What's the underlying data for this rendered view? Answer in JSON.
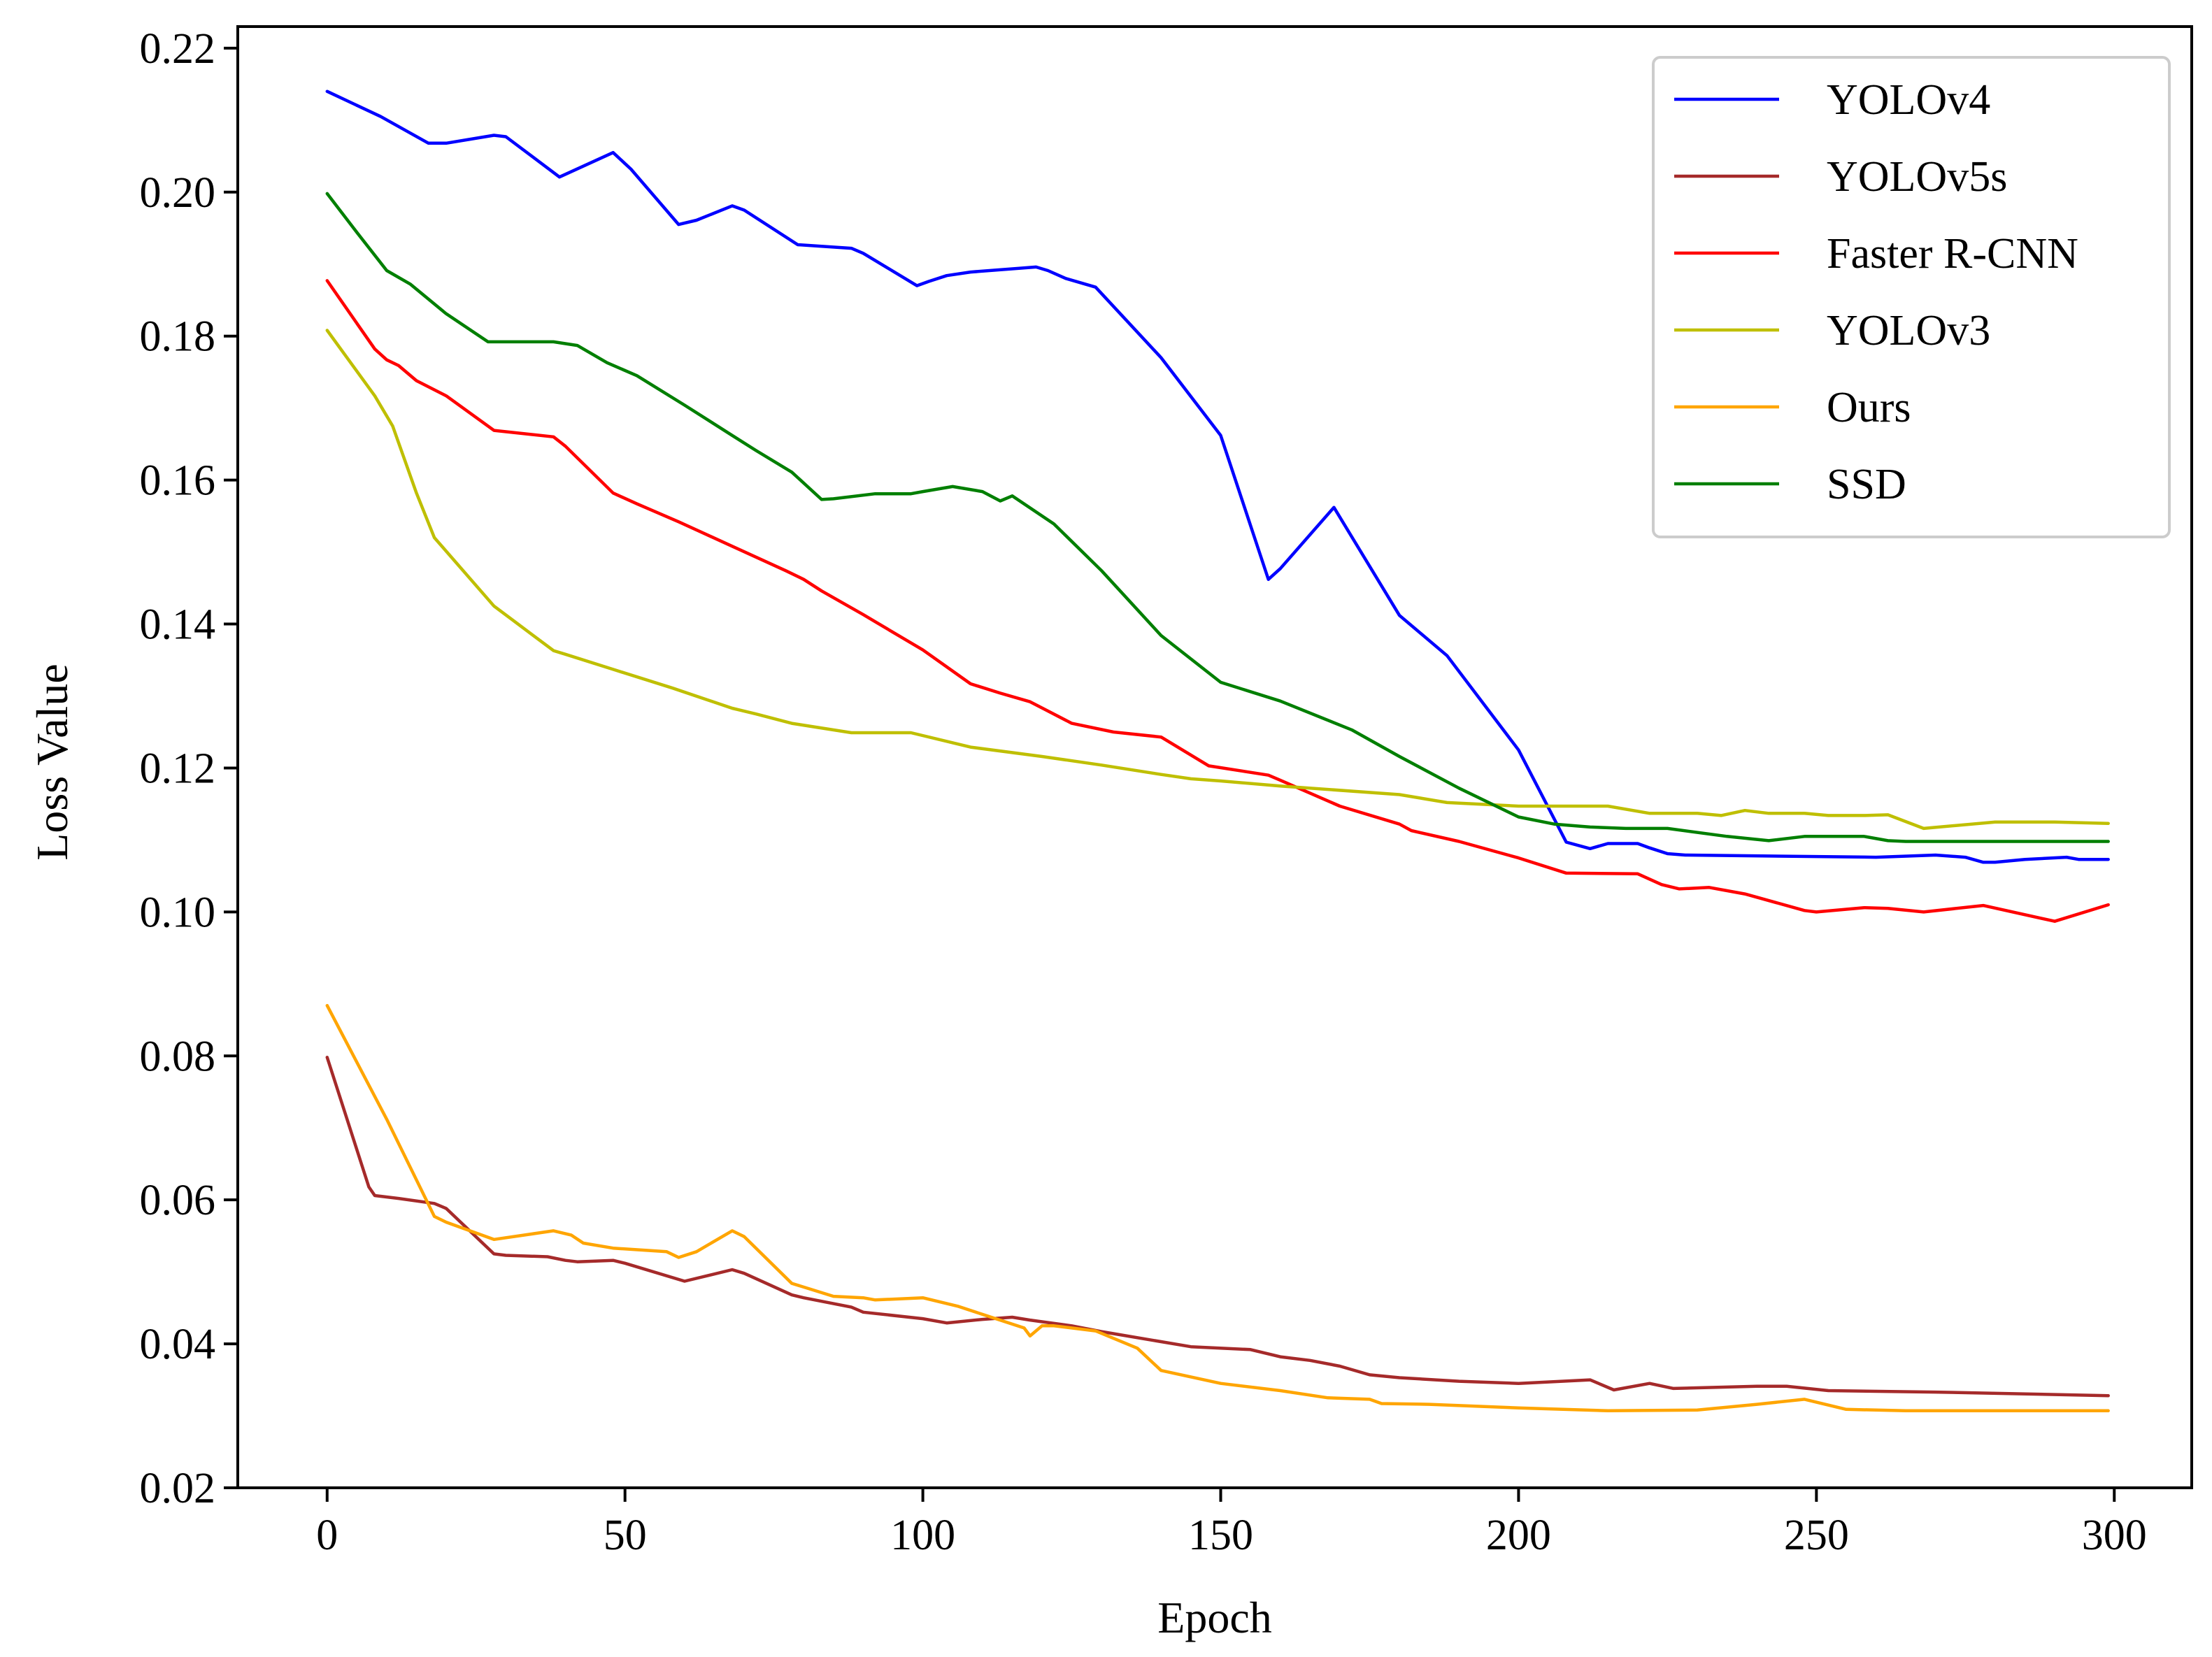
{
  "chart_data": {
    "type": "line",
    "title": "",
    "xlabel": "Epoch",
    "ylabel": "Loss Value",
    "xlim": [
      -15,
      313
    ],
    "ylim": [
      0.02,
      0.223
    ],
    "xticks": [
      0,
      50,
      100,
      150,
      200,
      250,
      300
    ],
    "xtick_labels": [
      "0",
      "50",
      "100",
      "150",
      "200",
      "250",
      "300"
    ],
    "yticks": [
      0.02,
      0.04,
      0.06,
      0.08,
      0.1,
      0.12,
      0.14,
      0.16,
      0.18,
      0.2,
      0.22
    ],
    "ytick_labels": [
      "0.02",
      "0.04",
      "0.06",
      "0.08",
      "0.10",
      "0.12",
      "0.14",
      "0.16",
      "0.18",
      "0.20",
      "0.22"
    ],
    "grid": false,
    "legend_position": "top-right",
    "series": [
      {
        "name": "YOLOv4",
        "color": "#0000ff",
        "points": [
          [
            0,
            0.214
          ],
          [
            9,
            0.2105
          ],
          [
            17,
            0.2068
          ],
          [
            20,
            0.2068
          ],
          [
            28,
            0.2079
          ],
          [
            30,
            0.2077
          ],
          [
            39,
            0.2021
          ],
          [
            48,
            0.2055
          ],
          [
            51,
            0.2032
          ],
          [
            59,
            0.1955
          ],
          [
            62,
            0.1961
          ],
          [
            68,
            0.1981
          ],
          [
            70,
            0.1975
          ],
          [
            79,
            0.1927
          ],
          [
            88,
            0.1922
          ],
          [
            90,
            0.1915
          ],
          [
            99,
            0.187
          ],
          [
            101,
            0.1876
          ],
          [
            104,
            0.1884
          ],
          [
            108,
            0.1889
          ],
          [
            119,
            0.1896
          ],
          [
            121,
            0.1891
          ],
          [
            124,
            0.188
          ],
          [
            129,
            0.1868
          ],
          [
            140,
            0.177
          ],
          [
            150,
            0.1662
          ],
          [
            158,
            0.1462
          ],
          [
            160,
            0.1477
          ],
          [
            169,
            0.1562
          ],
          [
            180,
            0.1412
          ],
          [
            188,
            0.1356
          ],
          [
            200,
            0.1225
          ],
          [
            208,
            0.1097
          ],
          [
            212,
            0.1088
          ],
          [
            215,
            0.1095
          ],
          [
            220,
            0.1095
          ],
          [
            222,
            0.1089
          ],
          [
            225,
            0.1081
          ],
          [
            228,
            0.1079
          ],
          [
            260,
            0.1076
          ],
          [
            270,
            0.1079
          ],
          [
            275,
            0.1076
          ],
          [
            278,
            0.1069
          ],
          [
            280,
            0.1069
          ],
          [
            285,
            0.1073
          ],
          [
            292,
            0.1076
          ],
          [
            294,
            0.1073
          ],
          [
            299,
            0.1073
          ]
        ]
      },
      {
        "name": "YOLOv5s",
        "color": "#a52a2a",
        "points": [
          [
            0,
            0.0798
          ],
          [
            7,
            0.0618
          ],
          [
            8,
            0.0606
          ],
          [
            12,
            0.0602
          ],
          [
            18,
            0.0595
          ],
          [
            20,
            0.0588
          ],
          [
            28,
            0.0525
          ],
          [
            30,
            0.0523
          ],
          [
            37,
            0.0521
          ],
          [
            40,
            0.0516
          ],
          [
            42,
            0.0514
          ],
          [
            48,
            0.0516
          ],
          [
            50,
            0.0512
          ],
          [
            60,
            0.0487
          ],
          [
            68,
            0.0503
          ],
          [
            70,
            0.0498
          ],
          [
            78,
            0.0468
          ],
          [
            80,
            0.0464
          ],
          [
            88,
            0.0451
          ],
          [
            90,
            0.0444
          ],
          [
            100,
            0.0435
          ],
          [
            104,
            0.0429
          ],
          [
            110,
            0.0434
          ],
          [
            115,
            0.0437
          ],
          [
            118,
            0.0433
          ],
          [
            125,
            0.0425
          ],
          [
            130,
            0.0417
          ],
          [
            140,
            0.0403
          ],
          [
            145,
            0.0396
          ],
          [
            155,
            0.0392
          ],
          [
            160,
            0.0382
          ],
          [
            165,
            0.0377
          ],
          [
            170,
            0.0369
          ],
          [
            175,
            0.0357
          ],
          [
            180,
            0.0353
          ],
          [
            190,
            0.0348
          ],
          [
            200,
            0.0345
          ],
          [
            212,
            0.035
          ],
          [
            216,
            0.0336
          ],
          [
            222,
            0.0345
          ],
          [
            226,
            0.0338
          ],
          [
            240,
            0.0341
          ],
          [
            245,
            0.0341
          ],
          [
            252,
            0.0335
          ],
          [
            270,
            0.0333
          ],
          [
            299,
            0.0328
          ]
        ]
      },
      {
        "name": "Faster R-CNN",
        "color": "#ff0000",
        "points": [
          [
            0,
            0.1877
          ],
          [
            8,
            0.1782
          ],
          [
            10,
            0.1767
          ],
          [
            12,
            0.1759
          ],
          [
            15,
            0.1738
          ],
          [
            20,
            0.1717
          ],
          [
            28,
            0.1669
          ],
          [
            38,
            0.166
          ],
          [
            40,
            0.1647
          ],
          [
            48,
            0.1582
          ],
          [
            52,
            0.1567
          ],
          [
            59,
            0.1542
          ],
          [
            68,
            0.1508
          ],
          [
            77,
            0.1474
          ],
          [
            80,
            0.1462
          ],
          [
            83,
            0.1446
          ],
          [
            90,
            0.1413
          ],
          [
            100,
            0.1364
          ],
          [
            108,
            0.1317
          ],
          [
            113,
            0.1304
          ],
          [
            118,
            0.1292
          ],
          [
            125,
            0.1262
          ],
          [
            132,
            0.125
          ],
          [
            140,
            0.1243
          ],
          [
            148,
            0.1203
          ],
          [
            158,
            0.119
          ],
          [
            160,
            0.1183
          ],
          [
            170,
            0.1147
          ],
          [
            180,
            0.1122
          ],
          [
            182,
            0.1113
          ],
          [
            190,
            0.1098
          ],
          [
            200,
            0.1075
          ],
          [
            208,
            0.1054
          ],
          [
            220,
            0.1053
          ],
          [
            224,
            0.1038
          ],
          [
            227,
            0.1032
          ],
          [
            232,
            0.1034
          ],
          [
            238,
            0.1025
          ],
          [
            248,
            0.1002
          ],
          [
            250,
            0.1
          ],
          [
            258,
            0.1006
          ],
          [
            262,
            0.1005
          ],
          [
            268,
            0.1
          ],
          [
            278,
            0.1009
          ],
          [
            290,
            0.0987
          ],
          [
            299,
            0.101
          ]
        ]
      },
      {
        "name": "YOLOv3",
        "color": "#bfbf00",
        "points": [
          [
            0,
            0.1808
          ],
          [
            8,
            0.1717
          ],
          [
            11,
            0.1675
          ],
          [
            15,
            0.1582
          ],
          [
            18,
            0.152
          ],
          [
            28,
            0.1425
          ],
          [
            38,
            0.1363
          ],
          [
            40,
            0.1358
          ],
          [
            48,
            0.1337
          ],
          [
            58,
            0.1311
          ],
          [
            68,
            0.1283
          ],
          [
            72,
            0.1275
          ],
          [
            78,
            0.1262
          ],
          [
            88,
            0.1249
          ],
          [
            98,
            0.1249
          ],
          [
            108,
            0.1229
          ],
          [
            120,
            0.1216
          ],
          [
            130,
            0.1204
          ],
          [
            140,
            0.1191
          ],
          [
            145,
            0.1185
          ],
          [
            150,
            0.1182
          ],
          [
            160,
            0.1175
          ],
          [
            180,
            0.1163
          ],
          [
            188,
            0.1152
          ],
          [
            200,
            0.1147
          ],
          [
            215,
            0.1147
          ],
          [
            222,
            0.1137
          ],
          [
            230,
            0.1137
          ],
          [
            234,
            0.1134
          ],
          [
            238,
            0.1141
          ],
          [
            242,
            0.1137
          ],
          [
            248,
            0.1137
          ],
          [
            252,
            0.1134
          ],
          [
            258,
            0.1134
          ],
          [
            262,
            0.1135
          ],
          [
            268,
            0.1116
          ],
          [
            280,
            0.1125
          ],
          [
            290,
            0.1125
          ],
          [
            299,
            0.1123
          ]
        ]
      },
      {
        "name": "Ours",
        "color": "#ffa500",
        "points": [
          [
            0,
            0.087
          ],
          [
            10,
            0.0712
          ],
          [
            18,
            0.0577
          ],
          [
            20,
            0.0569
          ],
          [
            28,
            0.0545
          ],
          [
            38,
            0.0557
          ],
          [
            41,
            0.0551
          ],
          [
            43,
            0.054
          ],
          [
            48,
            0.0533
          ],
          [
            57,
            0.0528
          ],
          [
            59,
            0.052
          ],
          [
            62,
            0.0528
          ],
          [
            68,
            0.0557
          ],
          [
            70,
            0.0549
          ],
          [
            78,
            0.0484
          ],
          [
            85,
            0.0466
          ],
          [
            90,
            0.0464
          ],
          [
            92,
            0.0461
          ],
          [
            100,
            0.0464
          ],
          [
            106,
            0.0452
          ],
          [
            110,
            0.0441
          ],
          [
            117,
            0.0422
          ],
          [
            118,
            0.0411
          ],
          [
            120,
            0.0425
          ],
          [
            122,
            0.0425
          ],
          [
            129,
            0.0418
          ],
          [
            136,
            0.0394
          ],
          [
            140,
            0.0363
          ],
          [
            145,
            0.0354
          ],
          [
            150,
            0.0345
          ],
          [
            160,
            0.0335
          ],
          [
            168,
            0.0325
          ],
          [
            175,
            0.0323
          ],
          [
            177,
            0.0317
          ],
          [
            185,
            0.0316
          ],
          [
            200,
            0.0311
          ],
          [
            215,
            0.0307
          ],
          [
            230,
            0.0308
          ],
          [
            240,
            0.0316
          ],
          [
            248,
            0.0323
          ],
          [
            255,
            0.0309
          ],
          [
            265,
            0.0307
          ],
          [
            299,
            0.0307
          ]
        ]
      },
      {
        "name": "SSD",
        "color": "#007f00",
        "points": [
          [
            0,
            0.1998
          ],
          [
            5,
            0.1944
          ],
          [
            10,
            0.1891
          ],
          [
            14,
            0.1872
          ],
          [
            20,
            0.1831
          ],
          [
            27,
            0.1792
          ],
          [
            38,
            0.1792
          ],
          [
            42,
            0.1787
          ],
          [
            47,
            0.1763
          ],
          [
            52,
            0.1745
          ],
          [
            60,
            0.1704
          ],
          [
            68,
            0.1662
          ],
          [
            72,
            0.1641
          ],
          [
            78,
            0.1611
          ],
          [
            83,
            0.1573
          ],
          [
            85,
            0.1574
          ],
          [
            92,
            0.1581
          ],
          [
            98,
            0.1581
          ],
          [
            100,
            0.1584
          ],
          [
            105,
            0.1591
          ],
          [
            110,
            0.1584
          ],
          [
            113,
            0.1571
          ],
          [
            115,
            0.1578
          ],
          [
            122,
            0.1539
          ],
          [
            130,
            0.1474
          ],
          [
            140,
            0.1384
          ],
          [
            150,
            0.1319
          ],
          [
            160,
            0.1293
          ],
          [
            172,
            0.1253
          ],
          [
            180,
            0.1216
          ],
          [
            190,
            0.1172
          ],
          [
            200,
            0.1132
          ],
          [
            206,
            0.1122
          ],
          [
            212,
            0.1118
          ],
          [
            218,
            0.1116
          ],
          [
            225,
            0.1116
          ],
          [
            235,
            0.1105
          ],
          [
            242,
            0.1099
          ],
          [
            248,
            0.1105
          ],
          [
            258,
            0.1105
          ],
          [
            262,
            0.1099
          ],
          [
            265,
            0.1098
          ],
          [
            299,
            0.1098
          ]
        ]
      }
    ]
  }
}
